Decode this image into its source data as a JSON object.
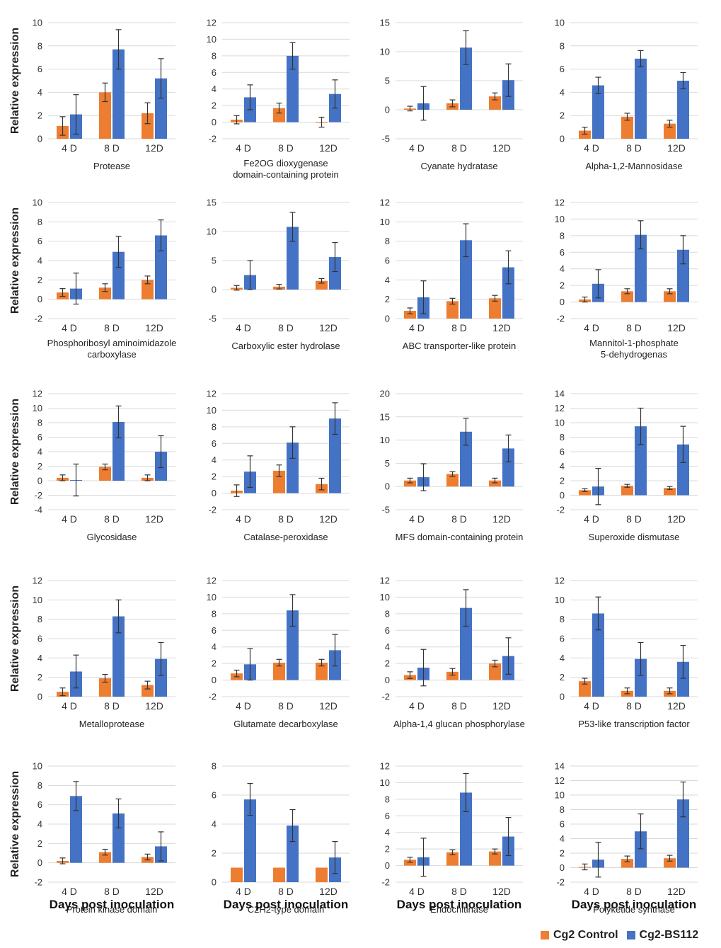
{
  "chart_data": {
    "type": "bar",
    "figure_type": "grid of 20 grouped bar charts with error bars",
    "series_names": [
      "Cg2 Control",
      "Cg2-BS112"
    ],
    "series_colors": [
      "#ED7D31",
      "#4472C4"
    ],
    "categories": [
      "4 D",
      "8 D",
      "12D"
    ],
    "ylabel": "Relative  expression",
    "xlabel": "Days post inoculation",
    "panels": [
      {
        "title": "Protease",
        "categories": [
          "4 D",
          "8 D",
          "12D"
        ],
        "ylim": [
          0,
          10
        ],
        "yticks": [
          0,
          2,
          4,
          6,
          8,
          10
        ],
        "series": [
          {
            "name": "Cg2 Control",
            "values": [
              1.1,
              4.0,
              2.2
            ],
            "errors": [
              0.8,
              0.8,
              0.9
            ]
          },
          {
            "name": "Cg2-BS112",
            "values": [
              2.1,
              7.7,
              5.2
            ],
            "errors": [
              1.7,
              1.7,
              1.7
            ]
          }
        ]
      },
      {
        "title": "Fe2OG dioxygenase domain-containing protein",
        "categories": [
          "4 D",
          "8 D",
          "12D"
        ],
        "ylim": [
          -2,
          12
        ],
        "yticks": [
          -2,
          0,
          2,
          4,
          6,
          8,
          10,
          12
        ],
        "series": [
          {
            "name": "Cg2 Control",
            "values": [
              0.3,
              1.7,
              0.0
            ],
            "errors": [
              0.5,
              0.6,
              0.6
            ]
          },
          {
            "name": "Cg2-BS112",
            "values": [
              3.0,
              8.0,
              3.4
            ],
            "errors": [
              1.5,
              1.6,
              1.7
            ]
          }
        ]
      },
      {
        "title": "Cyanate hydratase",
        "categories": [
          "4 D",
          "8 D",
          "12D"
        ],
        "ylim": [
          -5,
          15
        ],
        "yticks": [
          -5,
          0,
          5,
          10,
          15
        ],
        "series": [
          {
            "name": "Cg2 Control",
            "values": [
              0.2,
              1.1,
              2.3
            ],
            "errors": [
              0.4,
              0.6,
              0.6
            ]
          },
          {
            "name": "Cg2-BS112",
            "values": [
              1.1,
              10.7,
              5.1
            ],
            "errors": [
              2.9,
              2.9,
              2.8
            ]
          }
        ]
      },
      {
        "title": "Alpha-1,2-Mannosidase",
        "categories": [
          "4 D",
          "8 D",
          "12D"
        ],
        "ylim": [
          0,
          10
        ],
        "yticks": [
          0,
          2,
          4,
          6,
          8,
          10
        ],
        "series": [
          {
            "name": "Cg2 Control",
            "values": [
              0.7,
              1.9,
              1.3
            ],
            "errors": [
              0.3,
              0.3,
              0.3
            ]
          },
          {
            "name": "Cg2-BS112",
            "values": [
              4.6,
              6.9,
              5.0
            ],
            "errors": [
              0.7,
              0.7,
              0.7
            ]
          }
        ]
      },
      {
        "title": "Phosphoribosyl aminoimidazole carboxylase",
        "categories": [
          "4 D",
          "8 D",
          "12D"
        ],
        "ylim": [
          -2,
          10
        ],
        "yticks": [
          -2,
          0,
          2,
          4,
          6,
          8,
          10
        ],
        "series": [
          {
            "name": "Cg2 Control",
            "values": [
              0.7,
              1.2,
              2.0
            ],
            "errors": [
              0.4,
              0.4,
              0.4
            ]
          },
          {
            "name": "Cg2-BS112",
            "values": [
              1.1,
              4.9,
              6.6
            ],
            "errors": [
              1.6,
              1.6,
              1.6
            ]
          }
        ]
      },
      {
        "title": "Carboxylic ester hydrolase",
        "categories": [
          "4 D",
          "8 D",
          "12D"
        ],
        "ylim": [
          -5,
          15
        ],
        "yticks": [
          -5,
          0,
          5,
          10,
          15
        ],
        "series": [
          {
            "name": "Cg2 Control",
            "values": [
              0.3,
              0.5,
              1.5
            ],
            "errors": [
              0.4,
              0.4,
              0.4
            ]
          },
          {
            "name": "Cg2-BS112",
            "values": [
              2.5,
              10.8,
              5.6
            ],
            "errors": [
              2.5,
              2.5,
              2.5
            ]
          }
        ]
      },
      {
        "title": "ABC transporter-like protein",
        "categories": [
          "4 D",
          "8 D",
          "12D"
        ],
        "ylim": [
          0,
          12
        ],
        "yticks": [
          0,
          2,
          4,
          6,
          8,
          10,
          12
        ],
        "series": [
          {
            "name": "Cg2 Control",
            "values": [
              0.8,
              1.8,
              2.1
            ],
            "errors": [
              0.3,
              0.3,
              0.3
            ]
          },
          {
            "name": "Cg2-BS112",
            "values": [
              2.2,
              8.1,
              5.3
            ],
            "errors": [
              1.7,
              1.7,
              1.7
            ]
          }
        ]
      },
      {
        "title": "Mannitol-1-phosphate 5-dehydrogenas",
        "categories": [
          "4 D",
          "8 D",
          "12D"
        ],
        "ylim": [
          -2,
          12
        ],
        "yticks": [
          -2,
          0,
          2,
          4,
          6,
          8,
          10,
          12
        ],
        "series": [
          {
            "name": "Cg2 Control",
            "values": [
              0.3,
              1.3,
              1.3
            ],
            "errors": [
              0.3,
              0.3,
              0.3
            ]
          },
          {
            "name": "Cg2-BS112",
            "values": [
              2.2,
              8.1,
              6.3
            ],
            "errors": [
              1.7,
              1.7,
              1.7
            ]
          }
        ]
      },
      {
        "title": "Glycosidase",
        "categories": [
          "4 D",
          "8 D",
          "12D"
        ],
        "ylim": [
          -4,
          12
        ],
        "yticks": [
          -4,
          -2,
          0,
          2,
          4,
          6,
          8,
          10,
          12
        ],
        "series": [
          {
            "name": "Cg2 Control",
            "values": [
              0.4,
              1.9,
              0.4
            ],
            "errors": [
              0.4,
              0.4,
              0.4
            ]
          },
          {
            "name": "Cg2-BS112",
            "values": [
              0.1,
              8.1,
              4.0
            ],
            "errors": [
              2.2,
              2.2,
              2.2
            ]
          }
        ]
      },
      {
        "title": "Catalase-peroxidase",
        "categories": [
          "4 D",
          "8 D",
          "12D"
        ],
        "ylim": [
          -2,
          12
        ],
        "yticks": [
          -2,
          0,
          2,
          4,
          6,
          8,
          10,
          12
        ],
        "series": [
          {
            "name": "Cg2 Control",
            "values": [
              0.3,
              2.7,
              1.1
            ],
            "errors": [
              0.7,
              0.7,
              0.7
            ]
          },
          {
            "name": "Cg2-BS112",
            "values": [
              2.6,
              6.1,
              9.0
            ],
            "errors": [
              1.9,
              1.9,
              1.9
            ]
          }
        ]
      },
      {
        "title": "MFS domain-containing protein",
        "categories": [
          "4 D",
          "8 D",
          "12D"
        ],
        "ylim": [
          -5,
          20
        ],
        "yticks": [
          -5,
          0,
          5,
          10,
          15,
          20
        ],
        "series": [
          {
            "name": "Cg2 Control",
            "values": [
              1.3,
              2.7,
              1.3
            ],
            "errors": [
              0.5,
              0.5,
              0.5
            ]
          },
          {
            "name": "Cg2-BS112",
            "values": [
              2.0,
              11.8,
              8.2
            ],
            "errors": [
              2.9,
              2.9,
              2.9
            ]
          }
        ]
      },
      {
        "title": "Superoxide dismutase",
        "categories": [
          "4 D",
          "8 D",
          "12D"
        ],
        "ylim": [
          -2,
          14
        ],
        "yticks": [
          -2,
          0,
          2,
          4,
          6,
          8,
          10,
          12,
          14
        ],
        "series": [
          {
            "name": "Cg2 Control",
            "values": [
              0.7,
              1.3,
              1.0
            ],
            "errors": [
              0.2,
              0.2,
              0.2
            ]
          },
          {
            "name": "Cg2-BS112",
            "values": [
              1.2,
              9.5,
              7.0
            ],
            "errors": [
              2.5,
              2.5,
              2.5
            ]
          }
        ]
      },
      {
        "title": "Metalloprotease",
        "categories": [
          "4 D",
          "8 D",
          "12D"
        ],
        "ylim": [
          0,
          12
        ],
        "yticks": [
          0,
          2,
          4,
          6,
          8,
          10,
          12
        ],
        "series": [
          {
            "name": "Cg2 Control",
            "values": [
              0.5,
              1.9,
              1.2
            ],
            "errors": [
              0.4,
              0.4,
              0.4
            ]
          },
          {
            "name": "Cg2-BS112",
            "values": [
              2.6,
              8.3,
              3.9
            ],
            "errors": [
              1.7,
              1.7,
              1.7
            ]
          }
        ]
      },
      {
        "title": "Glutamate decarboxylase",
        "categories": [
          "4 D",
          "8 D",
          "12D"
        ],
        "ylim": [
          -2,
          12
        ],
        "yticks": [
          -2,
          0,
          2,
          4,
          6,
          8,
          10,
          12
        ],
        "series": [
          {
            "name": "Cg2 Control",
            "values": [
              0.8,
              2.1,
              2.1
            ],
            "errors": [
              0.4,
              0.4,
              0.4
            ]
          },
          {
            "name": "Cg2-BS112",
            "values": [
              1.9,
              8.4,
              3.6
            ],
            "errors": [
              1.9,
              1.9,
              1.9
            ]
          }
        ]
      },
      {
        "title": "Alpha-1,4 glucan phosphorylase",
        "categories": [
          "4 D",
          "8 D",
          "12D"
        ],
        "ylim": [
          -2,
          12
        ],
        "yticks": [
          -2,
          0,
          2,
          4,
          6,
          8,
          10,
          12
        ],
        "series": [
          {
            "name": "Cg2 Control",
            "values": [
              0.6,
              1.0,
              2.0
            ],
            "errors": [
              0.4,
              0.4,
              0.4
            ]
          },
          {
            "name": "Cg2-BS112",
            "values": [
              1.5,
              8.7,
              2.9
            ],
            "errors": [
              2.2,
              2.2,
              2.2
            ]
          }
        ]
      },
      {
        "title": "P53-like transcription factor",
        "categories": [
          "4 D",
          "8 D",
          "12D"
        ],
        "ylim": [
          0,
          12
        ],
        "yticks": [
          0,
          2,
          4,
          6,
          8,
          10,
          12
        ],
        "series": [
          {
            "name": "Cg2 Control",
            "values": [
              1.6,
              0.6,
              0.6
            ],
            "errors": [
              0.3,
              0.3,
              0.3
            ]
          },
          {
            "name": "Cg2-BS112",
            "values": [
              8.6,
              3.9,
              3.6
            ],
            "errors": [
              1.7,
              1.7,
              1.7
            ]
          }
        ]
      },
      {
        "title": "Protein kinase domain",
        "categories": [
          "4 D",
          "8 D",
          "12D"
        ],
        "ylim": [
          -2,
          10
        ],
        "yticks": [
          -2,
          0,
          2,
          4,
          6,
          8,
          10
        ],
        "series": [
          {
            "name": "Cg2 Control",
            "values": [
              0.2,
              1.1,
              0.6
            ],
            "errors": [
              0.3,
              0.3,
              0.3
            ]
          },
          {
            "name": "Cg2-BS112",
            "values": [
              6.9,
              5.1,
              1.7
            ],
            "errors": [
              1.5,
              1.5,
              1.5
            ]
          }
        ]
      },
      {
        "title": "C2H2-type domain",
        "categories": [
          "4 D",
          "8 D",
          "12D"
        ],
        "ylim": [
          0,
          8
        ],
        "yticks": [
          0,
          2,
          4,
          6,
          8
        ],
        "series": [
          {
            "name": "Cg2 Control",
            "values": [
              1.0,
              1.0,
              1.0
            ],
            "errors": [
              0.0,
              0.0,
              0.0
            ]
          },
          {
            "name": "Cg2-BS112",
            "values": [
              5.7,
              3.9,
              1.7
            ],
            "errors": [
              1.1,
              1.1,
              1.1
            ]
          }
        ]
      },
      {
        "title": "Endochitinase",
        "categories": [
          "4 D",
          "8 D",
          "12D"
        ],
        "ylim": [
          -2,
          12
        ],
        "yticks": [
          -2,
          0,
          2,
          4,
          6,
          8,
          10,
          12
        ],
        "series": [
          {
            "name": "Cg2 Control",
            "values": [
              0.7,
              1.6,
              1.7
            ],
            "errors": [
              0.3,
              0.3,
              0.3
            ]
          },
          {
            "name": "Cg2-BS112",
            "values": [
              1.0,
              8.8,
              3.5
            ],
            "errors": [
              2.3,
              2.3,
              2.3
            ]
          }
        ]
      },
      {
        "title": "Polyketide synthase",
        "categories": [
          "4 D",
          "8 D",
          "12D"
        ],
        "ylim": [
          -2,
          14
        ],
        "yticks": [
          -2,
          0,
          2,
          4,
          6,
          8,
          10,
          12,
          14
        ],
        "series": [
          {
            "name": "Cg2 Control",
            "values": [
              0.1,
              1.2,
              1.3
            ],
            "errors": [
              0.4,
              0.4,
              0.4
            ]
          },
          {
            "name": "Cg2-BS112",
            "values": [
              1.1,
              5.0,
              9.4
            ],
            "errors": [
              2.4,
              2.4,
              2.4
            ]
          }
        ]
      }
    ]
  }
}
